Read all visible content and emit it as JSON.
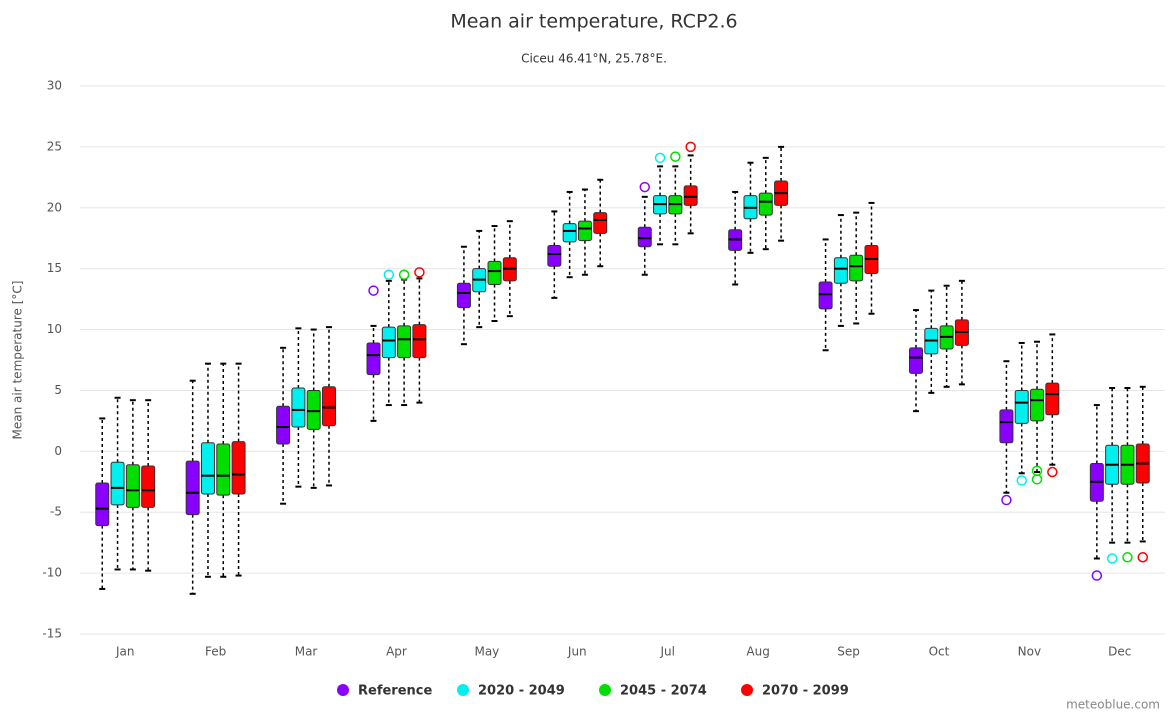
{
  "chart_data": {
    "type": "boxplot",
    "title": "Mean air temperature, RCP2.6",
    "subtitle": "Ciceu 46.41°N, 25.78°E.",
    "y_axis_label": "Mean air temperature [°C]",
    "credit": "meteoblue.com",
    "categories": [
      "Jan",
      "Feb",
      "Mar",
      "Apr",
      "May",
      "Jun",
      "Jul",
      "Aug",
      "Sep",
      "Oct",
      "Nov",
      "Dec"
    ],
    "ylim": [
      -15,
      30
    ],
    "yticks": [
      -15,
      -10,
      -5,
      0,
      5,
      10,
      15,
      20,
      25,
      30
    ],
    "grid": true,
    "legend": "bottom",
    "series": [
      {
        "name": "Reference",
        "color": "#8a00ff",
        "min": [
          -11.3,
          -11.7,
          -4.3,
          2.5,
          8.8,
          12.6,
          14.5,
          13.7,
          8.3,
          3.3,
          -3.4,
          -8.8
        ],
        "q1": [
          -6.1,
          -5.2,
          0.6,
          6.3,
          11.8,
          15.2,
          16.8,
          16.5,
          11.7,
          6.4,
          0.7,
          -4.1
        ],
        "median": [
          -4.7,
          -3.4,
          2.0,
          7.9,
          13.0,
          16.2,
          17.5,
          17.4,
          12.9,
          7.7,
          2.4,
          -2.5
        ],
        "q3": [
          -2.6,
          -0.8,
          3.7,
          8.9,
          13.8,
          16.9,
          18.4,
          18.2,
          13.9,
          8.5,
          3.4,
          -1.0
        ],
        "max": [
          2.7,
          5.8,
          8.5,
          10.3,
          16.8,
          19.7,
          20.9,
          21.3,
          17.4,
          11.6,
          7.4,
          3.8
        ],
        "outliers": [
          [],
          [],
          [],
          [
            13.2
          ],
          [],
          [],
          [
            21.7
          ],
          [],
          [],
          [],
          [
            -4.0
          ],
          [
            -10.2
          ]
        ]
      },
      {
        "name": "2020 - 2049",
        "color": "#00f0f0",
        "min": [
          -9.7,
          -10.3,
          -2.9,
          3.8,
          10.2,
          14.3,
          17.0,
          16.3,
          10.3,
          4.8,
          -1.8,
          -7.5
        ],
        "q1": [
          -4.4,
          -3.5,
          2.0,
          7.7,
          13.1,
          17.2,
          19.5,
          19.1,
          13.8,
          8.0,
          2.3,
          -2.7
        ],
        "median": [
          -3.0,
          -2.0,
          3.4,
          9.1,
          14.1,
          18.1,
          20.3,
          20.0,
          15.0,
          9.1,
          4.0,
          -1.1
        ],
        "q3": [
          -0.9,
          0.7,
          5.2,
          10.2,
          15.0,
          18.7,
          21.0,
          21.0,
          15.9,
          10.1,
          5.0,
          0.5
        ],
        "max": [
          4.4,
          7.2,
          10.1,
          14.0,
          18.1,
          21.3,
          23.4,
          23.7,
          19.4,
          13.2,
          8.9,
          5.2
        ],
        "outliers": [
          [],
          [],
          [],
          [
            14.5
          ],
          [],
          [],
          [
            24.1
          ],
          [],
          [],
          [],
          [
            -2.4
          ],
          [
            -8.8
          ]
        ]
      },
      {
        "name": "2045 - 2074",
        "color": "#00e000",
        "min": [
          -9.7,
          -10.3,
          -3.0,
          3.8,
          10.7,
          14.5,
          17.0,
          16.6,
          10.5,
          5.3,
          -1.7,
          -7.5
        ],
        "q1": [
          -4.6,
          -3.6,
          1.8,
          7.7,
          13.7,
          17.3,
          19.5,
          19.4,
          14.0,
          8.4,
          2.5,
          -2.7
        ],
        "median": [
          -3.2,
          -2.0,
          3.3,
          9.2,
          14.8,
          18.3,
          20.3,
          20.5,
          15.2,
          9.4,
          4.2,
          -1.1
        ],
        "q3": [
          -1.1,
          0.6,
          5.0,
          10.3,
          15.6,
          18.9,
          21.0,
          21.2,
          16.1,
          10.3,
          5.1,
          0.5
        ],
        "max": [
          4.2,
          7.2,
          10.0,
          14.1,
          18.5,
          21.5,
          23.4,
          24.1,
          19.6,
          13.6,
          9.0,
          5.2
        ],
        "outliers": [
          [],
          [],
          [],
          [
            14.5
          ],
          [],
          [],
          [
            24.2
          ],
          [],
          [],
          [],
          [
            -1.6,
            -2.3
          ],
          [
            -8.7
          ]
        ]
      },
      {
        "name": "2070 - 2099",
        "color": "#ff0000",
        "min": [
          -9.8,
          -10.2,
          -2.8,
          4.0,
          11.1,
          15.2,
          17.9,
          17.3,
          11.3,
          5.5,
          -1.1,
          -7.4
        ],
        "q1": [
          -4.6,
          -3.5,
          2.1,
          7.7,
          14.0,
          17.9,
          20.2,
          20.2,
          14.6,
          8.7,
          3.0,
          -2.6
        ],
        "median": [
          -3.2,
          -1.9,
          3.6,
          9.2,
          15.0,
          19.0,
          20.9,
          21.2,
          15.8,
          9.8,
          4.7,
          -1.0
        ],
        "q3": [
          -1.2,
          0.8,
          5.3,
          10.4,
          15.9,
          19.6,
          21.8,
          22.2,
          16.9,
          10.8,
          5.6,
          0.6
        ],
        "max": [
          4.2,
          7.2,
          10.2,
          14.2,
          18.9,
          22.3,
          24.3,
          25.0,
          20.4,
          14.0,
          9.6,
          5.3
        ],
        "outliers": [
          [],
          [],
          [],
          [
            14.7
          ],
          [],
          [],
          [
            25.0
          ],
          [],
          [],
          [],
          [
            -1.7
          ],
          [
            -8.7
          ]
        ]
      }
    ]
  }
}
